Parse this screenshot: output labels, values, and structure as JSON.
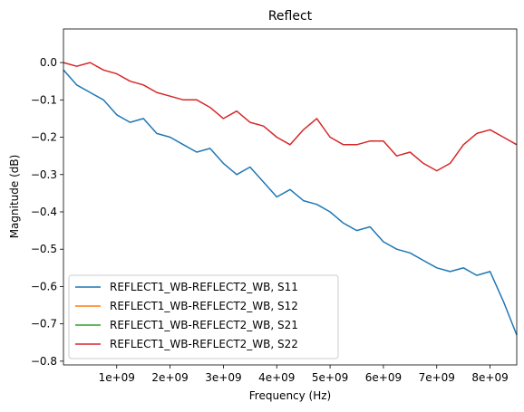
{
  "chart_data": {
    "type": "line",
    "title": "Reflect",
    "xlabel": "Frequency (Hz)",
    "ylabel": "Magnitude (dB)",
    "xlim": [
      1000000,
      8500000000
    ],
    "ylim": [
      -0.81,
      0.09
    ],
    "x_ticks": [
      1000000000,
      2000000000,
      3000000000,
      4000000000,
      5000000000,
      6000000000,
      7000000000,
      8000000000
    ],
    "x_tick_labels": [
      "1e+09",
      "2e+09",
      "3e+09",
      "4e+09",
      "5e+09",
      "6e+09",
      "7e+09",
      "8e+09"
    ],
    "y_ticks": [
      0.0,
      -0.1,
      -0.2,
      -0.3,
      -0.4,
      -0.5,
      -0.6,
      -0.7,
      -0.8
    ],
    "y_tick_labels": [
      "0.0",
      "−0.1",
      "−0.2",
      "−0.3",
      "−0.4",
      "−0.5",
      "−0.6",
      "−0.7",
      "−0.8"
    ],
    "grid": false,
    "legend_position": "lower-left",
    "series": [
      {
        "name": "REFLECT1_WB-REFLECT2_WB, S11",
        "color": "#1f77b4",
        "x": [
          1000000,
          250000000,
          500000000,
          750000000,
          1000000000,
          1250000000,
          1500000000,
          1750000000,
          2000000000,
          2250000000,
          2500000000,
          2750000000,
          3000000000,
          3250000000,
          3500000000,
          3750000000,
          4000000000,
          4250000000,
          4500000000,
          4750000000,
          5000000000,
          5250000000,
          5500000000,
          5750000000,
          6000000000,
          6250000000,
          6500000000,
          6750000000,
          7000000000,
          7250000000,
          7500000000,
          7750000000,
          8000000000,
          8250000000,
          8500000000
        ],
        "y": [
          -0.02,
          -0.06,
          -0.08,
          -0.1,
          -0.14,
          -0.16,
          -0.15,
          -0.19,
          -0.2,
          -0.22,
          -0.24,
          -0.23,
          -0.27,
          -0.3,
          -0.28,
          -0.32,
          -0.36,
          -0.34,
          -0.37,
          -0.38,
          -0.4,
          -0.43,
          -0.45,
          -0.44,
          -0.48,
          -0.5,
          -0.51,
          -0.53,
          -0.55,
          -0.56,
          -0.55,
          -0.57,
          -0.56,
          -0.64,
          -0.73
        ]
      },
      {
        "name": "REFLECT1_WB-REFLECT2_WB, S12",
        "color": "#ff7f0e",
        "x": [],
        "y": []
      },
      {
        "name": "REFLECT1_WB-REFLECT2_WB, S21",
        "color": "#2ca02c",
        "x": [],
        "y": []
      },
      {
        "name": "REFLECT1_WB-REFLECT2_WB, S22",
        "color": "#d62728",
        "x": [
          1000000,
          250000000,
          500000000,
          750000000,
          1000000000,
          1250000000,
          1500000000,
          1750000000,
          2000000000,
          2250000000,
          2500000000,
          2750000000,
          3000000000,
          3250000000,
          3500000000,
          3750000000,
          4000000000,
          4250000000,
          4500000000,
          4750000000,
          5000000000,
          5250000000,
          5500000000,
          5750000000,
          6000000000,
          6250000000,
          6500000000,
          6750000000,
          7000000000,
          7250000000,
          7500000000,
          7750000000,
          8000000000,
          8250000000,
          8500000000
        ],
        "y": [
          0.0,
          -0.01,
          0.0,
          -0.02,
          -0.03,
          -0.05,
          -0.06,
          -0.08,
          -0.09,
          -0.1,
          -0.1,
          -0.12,
          -0.15,
          -0.13,
          -0.16,
          -0.17,
          -0.2,
          -0.22,
          -0.18,
          -0.15,
          -0.2,
          -0.22,
          -0.22,
          -0.21,
          -0.21,
          -0.25,
          -0.24,
          -0.27,
          -0.29,
          -0.27,
          -0.22,
          -0.19,
          -0.18,
          -0.2,
          -0.22
        ]
      }
    ]
  }
}
